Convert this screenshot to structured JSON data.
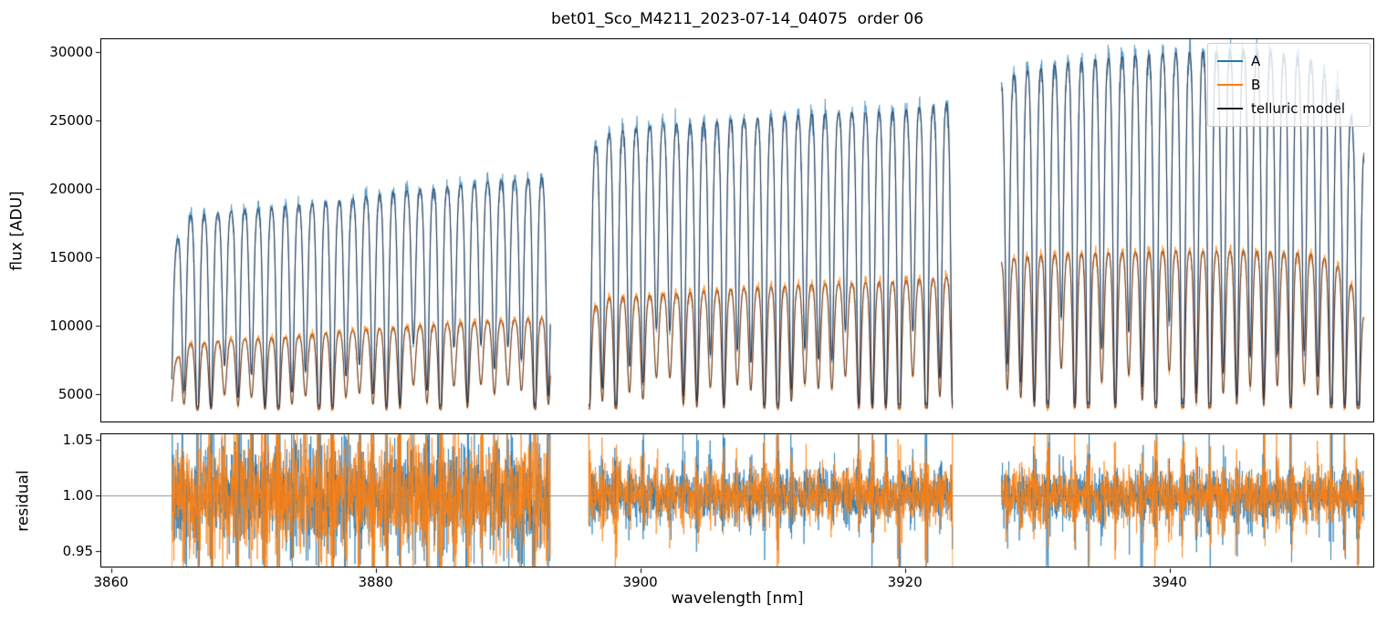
{
  "chart_data": {
    "type": "line",
    "title": "bet01_Sco_M4211_2023-07-14_04075  order 06",
    "xlabel": "wavelength [nm]",
    "xlim": [
      3859.2,
      3955.4
    ],
    "xticks": [
      {
        "value": 3860,
        "label": "3860"
      },
      {
        "value": 3880,
        "label": "3880"
      },
      {
        "value": 3900,
        "label": "3900"
      },
      {
        "value": 3920,
        "label": "3920"
      },
      {
        "value": 3940,
        "label": "3940"
      }
    ],
    "top_panel": {
      "ylabel": "flux [ADU]",
      "ylim": [
        2930,
        31000
      ],
      "yticks": [
        {
          "value": 5000,
          "label": "5000"
        },
        {
          "value": 10000,
          "label": "10000"
        },
        {
          "value": 15000,
          "label": "15000"
        },
        {
          "value": 20000,
          "label": "20000"
        },
        {
          "value": 25000,
          "label": "25000"
        },
        {
          "value": 30000,
          "label": "30000"
        }
      ]
    },
    "bottom_panel": {
      "ylabel": "residual",
      "ylim": [
        0.935,
        1.056
      ],
      "yticks": [
        {
          "value": 0.95,
          "label": "0.95"
        },
        {
          "value": 1.0,
          "label": "1.00"
        },
        {
          "value": 1.05,
          "label": "1.05"
        }
      ],
      "reference_line": 1.0
    },
    "legend": [
      {
        "label": "A",
        "color": "#1f77b4"
      },
      {
        "label": "B",
        "color": "#ff7f0e"
      },
      {
        "label": "telluric model",
        "color": "#1c1c2c"
      }
    ],
    "colors": {
      "A": "#1f77b4",
      "B": "#ff7f0e",
      "model": "#1d1d30",
      "reference_line": "#909090",
      "axis": "#000000"
    },
    "background_adu": 3800,
    "flux_noise_frac": 0.016,
    "telluric_lines": {
      "anchor_nm": 3864.5,
      "spacing_nm": 1.02,
      "sigma_nm": 0.16,
      "depth_min": 0.7,
      "depth_max": 1.15,
      "floor": 0.02
    },
    "segments": [
      {
        "x_start": 3864.6,
        "x_end": 3893.2,
        "residual_sigma": 0.022,
        "A_continuum": [
          [
            3864.6,
            15200
          ],
          [
            3865.6,
            18200
          ],
          [
            3869,
            18500
          ],
          [
            3873,
            18900
          ],
          [
            3877,
            19300
          ],
          [
            3881,
            19900
          ],
          [
            3885,
            20300
          ],
          [
            3889,
            20700
          ],
          [
            3893.2,
            21100
          ]
        ],
        "B_continuum": [
          [
            3864.6,
            7000
          ],
          [
            3865.6,
            8700
          ],
          [
            3869,
            9000
          ],
          [
            3873,
            9200
          ],
          [
            3877,
            9600
          ],
          [
            3881,
            9900
          ],
          [
            3885,
            10200
          ],
          [
            3889,
            10400
          ],
          [
            3893.2,
            10700
          ]
        ]
      },
      {
        "x_start": 3896.1,
        "x_end": 3923.6,
        "residual_sigma": 0.01,
        "A_continuum": [
          [
            3896.1,
            22600
          ],
          [
            3897.3,
            24300
          ],
          [
            3901,
            24800
          ],
          [
            3906,
            25200
          ],
          [
            3911,
            25600
          ],
          [
            3916,
            25800
          ],
          [
            3920,
            26000
          ],
          [
            3923.6,
            26600
          ]
        ],
        "B_continuum": [
          [
            3896.1,
            11100
          ],
          [
            3897.3,
            12100
          ],
          [
            3901,
            12300
          ],
          [
            3906,
            12700
          ],
          [
            3911,
            13000
          ],
          [
            3916,
            13200
          ],
          [
            3920,
            13400
          ],
          [
            3923.6,
            13700
          ]
        ]
      },
      {
        "x_start": 3927.3,
        "x_end": 3954.7,
        "residual_sigma": 0.01,
        "A_continuum": [
          [
            3927.3,
            28300
          ],
          [
            3929.5,
            29000
          ],
          [
            3933,
            29600
          ],
          [
            3937,
            30000
          ],
          [
            3941,
            30300
          ],
          [
            3945,
            30400
          ],
          [
            3948,
            30200
          ],
          [
            3950.5,
            29800
          ],
          [
            3952.5,
            28000
          ],
          [
            3953.8,
            25500
          ],
          [
            3954.7,
            23200
          ]
        ],
        "B_continuum": [
          [
            3927.3,
            14900
          ],
          [
            3929.5,
            15200
          ],
          [
            3933,
            15400
          ],
          [
            3937,
            15500
          ],
          [
            3941,
            15600
          ],
          [
            3945,
            15600
          ],
          [
            3948,
            15500
          ],
          [
            3950.5,
            15400
          ],
          [
            3952.5,
            14800
          ],
          [
            3953.8,
            13000
          ],
          [
            3954.7,
            10800
          ]
        ]
      }
    ],
    "seed": 42
  }
}
